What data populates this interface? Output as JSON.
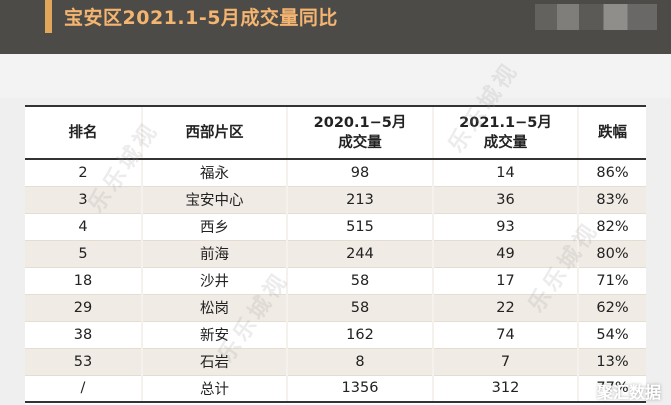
{
  "title": "宝安区2021.1-5月成交量同比",
  "table": {
    "headers": [
      {
        "line1": "排名",
        "line2": ""
      },
      {
        "line1": "西部片区",
        "line2": ""
      },
      {
        "line1": "2020.1−5月",
        "line2": "成交量"
      },
      {
        "line1": "2021.1−5月",
        "line2": "成交量"
      },
      {
        "line1": "跌幅",
        "line2": ""
      }
    ],
    "rows": [
      [
        "2",
        "福永",
        "98",
        "14",
        "86%"
      ],
      [
        "3",
        "宝安中心",
        "213",
        "36",
        "83%"
      ],
      [
        "4",
        "西乡",
        "515",
        "93",
        "82%"
      ],
      [
        "5",
        "前海",
        "244",
        "49",
        "80%"
      ],
      [
        "18",
        "沙井",
        "58",
        "17",
        "71%"
      ],
      [
        "29",
        "松岗",
        "58",
        "22",
        "62%"
      ],
      [
        "38",
        "新安",
        "162",
        "74",
        "54%"
      ],
      [
        "53",
        "石岩",
        "8",
        "7",
        "13%"
      ],
      [
        "/",
        "总计",
        "1356",
        "312",
        "77%"
      ]
    ]
  },
  "watermark_text": "乐乐城视",
  "corner_logo": "聚汇数据",
  "colors": {
    "header_bg": "#4d4b48",
    "title": "#f4b571",
    "accent": "#e3a75b",
    "row_stripe": "#f0ebe4"
  }
}
